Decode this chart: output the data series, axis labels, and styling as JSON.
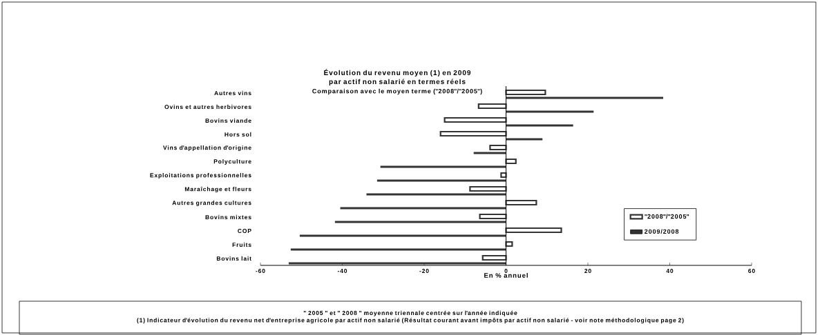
{
  "chart_data": {
    "type": "bar",
    "orientation": "horizontal",
    "title": "Évolution du revenu moyen (1) en 2009 par actif non salarié en termes réels",
    "subtitle": "Comparaison avec le moyen terme (\"2008\"/\"2005\")",
    "xlabel": "En % annuel",
    "categories": [
      "Autres vins",
      "Ovins et autres herbivores",
      "Bovins viande",
      "Hors sol",
      "Vins d'appellation d'origine",
      "Polyculture",
      "Exploitations professionnelles",
      "Maraîchage et fleurs",
      "Autres grandes cultures",
      "Bovins mixtes",
      "COP",
      "Fruits",
      "Bovins lait"
    ],
    "series": [
      {
        "name": "\"2008\"/\"2005\"",
        "color": "#333333",
        "values": [
          9.6,
          -6.7,
          -15,
          -16,
          -3.9,
          2.4,
          -1.2,
          -8.8,
          7.4,
          -6.4,
          13.5,
          1.5,
          -5.7
        ]
      },
      {
        "name": "2009/2008",
        "color": "#333333",
        "values": [
          38.4,
          21.4,
          16.4,
          8.9,
          -7.9,
          -30.7,
          -31.5,
          -34.1,
          -40.5,
          -41.8,
          -50.4,
          -52.6,
          -53.1
        ]
      }
    ],
    "xlim": [
      -60,
      60
    ],
    "xticks": [
      -60,
      -40,
      -20,
      0,
      20,
      40,
      60
    ],
    "legend": "bottom right",
    "annotations": [
      "\" 2005 \" et \" 2008 \" moyenne triennale centrée sur l'année indiquée",
      "(1) Indicateur d'évolution du revenu net d'entreprise agricole par actif non salarié (Résultat courant avant impôts par actif non salarié - voir note méthodologique page 2)"
    ]
  }
}
